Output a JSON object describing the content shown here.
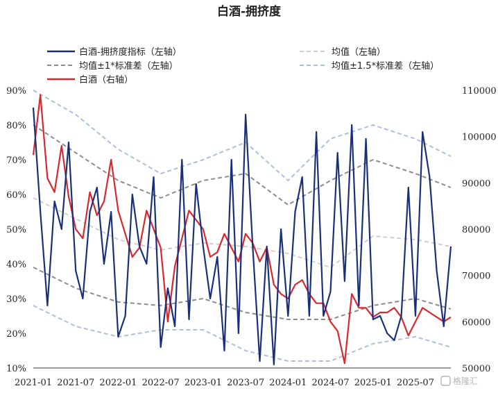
{
  "chart_data": {
    "type": "line",
    "title": "白酒-拥挤度",
    "x_start": "2021-01",
    "x_end": "2025-12",
    "x_ticks": [
      "2021-01",
      "2021-07",
      "2022-01",
      "2022-07",
      "2023-01",
      "2023-07",
      "2024-01",
      "2024-07",
      "2025-01",
      "2025-07"
    ],
    "y_left": {
      "ticks": [
        "10%",
        "20%",
        "30%",
        "40%",
        "50%",
        "60%",
        "70%",
        "80%",
        "90%"
      ],
      "range": [
        10,
        90
      ],
      "unit": "%"
    },
    "y_right": {
      "ticks": [
        "50000",
        "60000",
        "70000",
        "80000",
        "90000",
        "100000",
        "110000"
      ],
      "range": [
        50000,
        110000
      ]
    },
    "legend": [
      {
        "label": "白酒-拥挤度指标（左轴）",
        "color": "#1a2f7a",
        "style": "solid"
      },
      {
        "label": "均值（左轴）",
        "color": "#cfcfcf",
        "style": "dashed"
      },
      {
        "label": "均值±1*标准差（左轴）",
        "color": "#8c8c8c",
        "style": "dashed"
      },
      {
        "label": "均值±1.5*标准差（左轴）",
        "color": "#aac0e0",
        "style": "dashed"
      },
      {
        "label": "白酒（右轴）",
        "color": "#d9272e",
        "style": "solid"
      }
    ],
    "series": [
      {
        "name": "白酒-拥挤度指标（左轴）",
        "axis": "left",
        "x": [
          "2021-01",
          "2021-02",
          "2021-03",
          "2021-04",
          "2021-05",
          "2021-06",
          "2021-07",
          "2021-08",
          "2021-09",
          "2021-10",
          "2021-11",
          "2021-12",
          "2022-01",
          "2022-02",
          "2022-03",
          "2022-04",
          "2022-05",
          "2022-06",
          "2022-07",
          "2022-08",
          "2022-09",
          "2022-10",
          "2022-11",
          "2022-12",
          "2023-01",
          "2023-02",
          "2023-03",
          "2023-04",
          "2023-05",
          "2023-06",
          "2023-07",
          "2023-08",
          "2023-09",
          "2023-10",
          "2023-11",
          "2023-12",
          "2024-01",
          "2024-02",
          "2024-03",
          "2024-04",
          "2024-05",
          "2024-06",
          "2024-07",
          "2024-08",
          "2024-09",
          "2024-10",
          "2024-11",
          "2024-12",
          "2025-01",
          "2025-02",
          "2025-03",
          "2025-04",
          "2025-05",
          "2025-06",
          "2025-07",
          "2025-08",
          "2025-09",
          "2025-10",
          "2025-11",
          "2025-12"
        ],
        "values": [
          85,
          55,
          28,
          58,
          50,
          75,
          38,
          30,
          55,
          62,
          40,
          55,
          19,
          25,
          60,
          45,
          40,
          65,
          16,
          33,
          22,
          70,
          24,
          63,
          45,
          30,
          42,
          15,
          70,
          20,
          83,
          45,
          12,
          45,
          11,
          50,
          25,
          55,
          65,
          25,
          78,
          25,
          32,
          72,
          35,
          80,
          28,
          76,
          24,
          25,
          20,
          18,
          25,
          62,
          25,
          78,
          65,
          38,
          22,
          45
        ]
      },
      {
        "name": "均值（左轴）",
        "axis": "left",
        "x": [
          "2021-01",
          "2021-07",
          "2022-01",
          "2022-07",
          "2023-01",
          "2023-07",
          "2024-01",
          "2024-07",
          "2025-01",
          "2025-07",
          "2025-12"
        ],
        "values": [
          59,
          53,
          47,
          44,
          46,
          45,
          43,
          39,
          48,
          47,
          45
        ]
      },
      {
        "name": "均值±1*标准差（左轴）",
        "axis": "left",
        "x": [
          "2021-01",
          "2021-07",
          "2022-01",
          "2022-07",
          "2023-01",
          "2023-07",
          "2024-01",
          "2024-07",
          "2025-01",
          "2025-07",
          "2025-12"
        ],
        "values_upper": [
          80,
          72,
          64,
          59,
          64,
          66,
          57,
          64,
          70,
          66,
          62
        ],
        "values_lower": [
          39,
          33,
          29,
          28,
          30,
          26,
          24,
          24,
          28,
          30,
          27
        ]
      },
      {
        "name": "均值±1.5*标准差（左轴）",
        "axis": "left",
        "x": [
          "2021-01",
          "2021-07",
          "2022-01",
          "2022-07",
          "2023-01",
          "2023-07",
          "2024-01",
          "2024-07",
          "2025-01",
          "2025-07",
          "2025-12"
        ],
        "values_upper": [
          90,
          83,
          73,
          66,
          70,
          75,
          64,
          76,
          80,
          76,
          71
        ],
        "values_lower": [
          28,
          22,
          19,
          21,
          21,
          15,
          12,
          12,
          17,
          19,
          16
        ]
      },
      {
        "name": "白酒（右轴）",
        "axis": "right",
        "x": [
          "2021-01",
          "2021-02",
          "2021-03",
          "2021-04",
          "2021-05",
          "2021-06",
          "2021-07",
          "2021-08",
          "2021-09",
          "2021-10",
          "2021-11",
          "2021-12",
          "2022-01",
          "2022-02",
          "2022-03",
          "2022-04",
          "2022-05",
          "2022-06",
          "2022-07",
          "2022-08",
          "2022-09",
          "2022-10",
          "2022-11",
          "2022-12",
          "2023-01",
          "2023-02",
          "2023-03",
          "2023-04",
          "2023-05",
          "2023-06",
          "2023-07",
          "2023-08",
          "2023-09",
          "2023-10",
          "2023-11",
          "2023-12",
          "2024-01",
          "2024-02",
          "2024-03",
          "2024-04",
          "2024-05",
          "2024-06",
          "2024-07",
          "2024-08",
          "2024-09",
          "2024-10",
          "2024-11",
          "2024-12",
          "2025-01",
          "2025-02",
          "2025-03",
          "2025-04",
          "2025-05",
          "2025-06",
          "2025-07",
          "2025-08",
          "2025-09",
          "2025-10",
          "2025-11",
          "2025-12"
        ],
        "values": [
          96,
          109,
          91,
          88,
          98,
          87,
          80,
          78,
          88,
          83,
          86,
          95,
          84,
          79,
          74,
          76,
          84,
          80,
          76,
          60,
          72,
          78,
          84,
          82,
          80,
          74,
          75,
          79,
          76,
          73,
          79,
          77,
          73,
          76,
          68,
          66,
          65,
          68,
          69,
          66,
          64,
          64,
          60,
          58,
          51,
          66,
          63,
          63,
          61,
          62,
          62,
          63,
          61,
          57,
          60,
          63,
          62,
          61,
          60,
          61
        ],
        "values_unit": "thousand"
      }
    ]
  },
  "watermark": {
    "text": "格隆汇"
  }
}
